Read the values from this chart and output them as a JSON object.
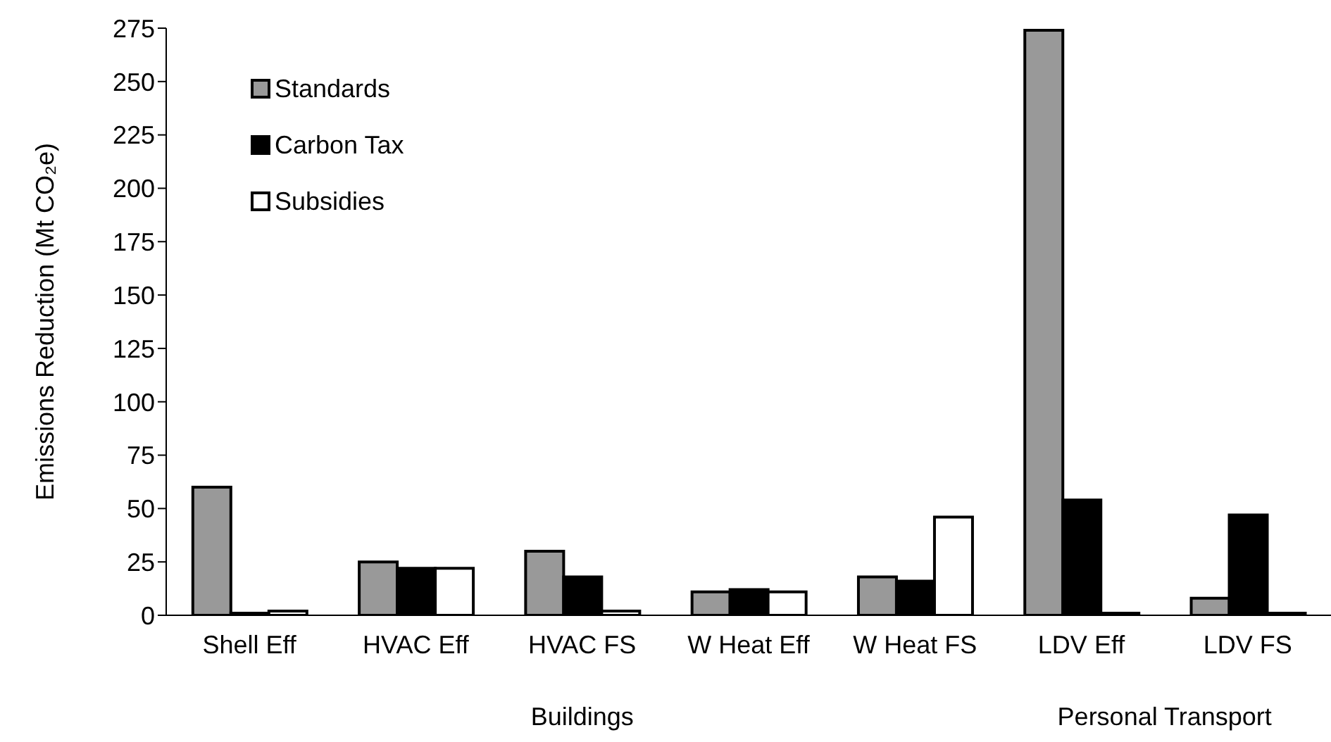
{
  "chart_data": {
    "type": "bar",
    "ylabel": "Emissions Reduction (Mt CO₂e)",
    "categories": [
      "Shell Eff",
      "HVAC Eff",
      "HVAC FS",
      "W Heat Eff",
      "W Heat FS",
      "LDV Eff",
      "LDV FS"
    ],
    "series": [
      {
        "name": "Standards",
        "color": "#999999",
        "values": [
          60,
          25,
          30,
          11,
          18,
          274,
          8
        ]
      },
      {
        "name": "Carbon Tax",
        "color": "#000000",
        "values": [
          1,
          22,
          18,
          12,
          16,
          54,
          47
        ]
      },
      {
        "name": "Subsidies",
        "color": "#ffffff",
        "values": [
          2,
          22,
          2,
          11,
          46,
          1,
          1
        ]
      }
    ],
    "ylim": [
      0,
      275
    ],
    "yticks": [
      0,
      25,
      50,
      75,
      100,
      125,
      150,
      175,
      200,
      225,
      250,
      275
    ],
    "annotations": [
      "Buildings",
      "Personal Transport"
    ],
    "legend": "top left",
    "grid": false
  }
}
